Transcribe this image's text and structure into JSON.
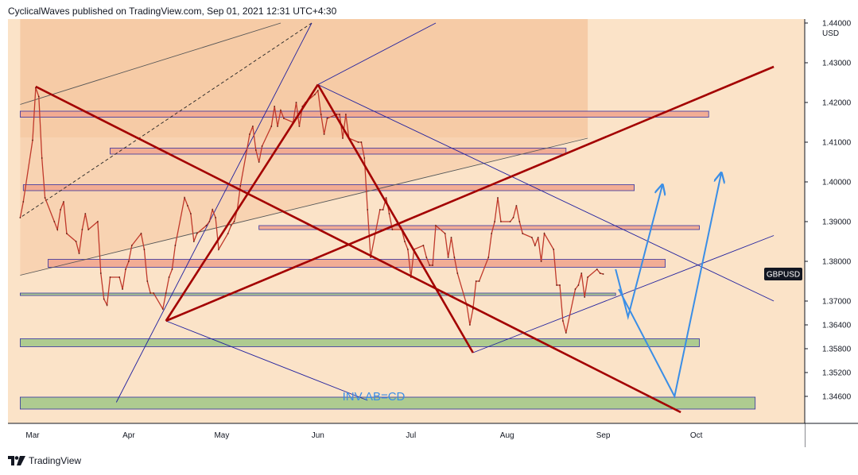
{
  "header": {
    "attribution": "CyclicalWaves published on TradingView.com, Sep 01, 2021 12:31 UTC+4:30"
  },
  "footer": {
    "brand": "TradingView",
    "logo_icon": "tradingview-logo-icon"
  },
  "colors": {
    "background": "#fbe3c8",
    "shaded_channel": "#f5c7a0",
    "resistance_zone": "#f2a890",
    "support_zone": "#a6c98a",
    "harmonic_line": "#a30000",
    "channel_line": "#1f1f9e",
    "projection_line": "#3a8ee6",
    "price_label_bg": "#131722"
  },
  "chart_data": {
    "type": "line",
    "symbol_label": "GBPUSD",
    "currency_label": "USD",
    "annotation": "INV AB=CD",
    "y_ticks": [
      "1.44000",
      "1.43000",
      "1.42000",
      "1.41000",
      "1.40000",
      "1.39000",
      "1.38000",
      "1.37000",
      "1.36400",
      "1.35800",
      "1.35200",
      "1.34600"
    ],
    "x_ticks": [
      "Mar",
      "Apr",
      "May",
      "Jun",
      "Jul",
      "Aug",
      "Sep",
      "Oct"
    ],
    "series": [
      {
        "values": [
          [
            "2021-02-25",
            1.391
          ],
          [
            "2021-02-26",
            1.395
          ],
          [
            "2021-03-01",
            1.4105
          ],
          [
            "2021-03-02",
            1.4237
          ],
          [
            "2021-03-03",
            1.4215
          ],
          [
            "2021-03-04",
            1.406
          ],
          [
            "2021-03-05",
            1.396
          ],
          [
            "2021-03-08",
            1.39
          ],
          [
            "2021-03-09",
            1.388
          ],
          [
            "2021-03-10",
            1.393
          ],
          [
            "2021-03-11",
            1.395
          ],
          [
            "2021-03-12",
            1.387
          ],
          [
            "2021-03-15",
            1.385
          ],
          [
            "2021-03-16",
            1.382
          ],
          [
            "2021-03-17",
            1.388
          ],
          [
            "2021-03-18",
            1.392
          ],
          [
            "2021-03-19",
            1.388
          ],
          [
            "2021-03-22",
            1.39
          ],
          [
            "2021-03-23",
            1.377
          ],
          [
            "2021-03-24",
            1.3705
          ],
          [
            "2021-03-25",
            1.369
          ],
          [
            "2021-03-26",
            1.376
          ],
          [
            "2021-03-29",
            1.376
          ],
          [
            "2021-03-30",
            1.373
          ],
          [
            "2021-03-31",
            1.378
          ],
          [
            "2021-04-01",
            1.38
          ],
          [
            "2021-04-02",
            1.384
          ],
          [
            "2021-04-05",
            1.387
          ],
          [
            "2021-04-06",
            1.383
          ],
          [
            "2021-04-07",
            1.375
          ],
          [
            "2021-04-08",
            1.372
          ],
          [
            "2021-04-09",
            1.372
          ],
          [
            "2021-04-12",
            1.368
          ],
          [
            "2021-04-13",
            1.372
          ],
          [
            "2021-04-14",
            1.376
          ],
          [
            "2021-04-15",
            1.378
          ],
          [
            "2021-04-16",
            1.384
          ],
          [
            "2021-04-19",
            1.396
          ],
          [
            "2021-04-20",
            1.394
          ],
          [
            "2021-04-21",
            1.392
          ],
          [
            "2021-04-22",
            1.385
          ],
          [
            "2021-04-23",
            1.387
          ],
          [
            "2021-04-26",
            1.389
          ],
          [
            "2021-04-27",
            1.39
          ],
          [
            "2021-04-28",
            1.393
          ],
          [
            "2021-04-29",
            1.391
          ],
          [
            "2021-04-30",
            1.383
          ],
          [
            "2021-05-03",
            1.387
          ],
          [
            "2021-05-04",
            1.389
          ],
          [
            "2021-05-05",
            1.39
          ],
          [
            "2021-05-06",
            1.393
          ],
          [
            "2021-05-07",
            1.399
          ],
          [
            "2021-05-10",
            1.412
          ],
          [
            "2021-05-11",
            1.414
          ],
          [
            "2021-05-12",
            1.408
          ],
          [
            "2021-05-13",
            1.405
          ],
          [
            "2021-05-14",
            1.409
          ],
          [
            "2021-05-17",
            1.414
          ],
          [
            "2021-05-18",
            1.419
          ],
          [
            "2021-05-19",
            1.414
          ],
          [
            "2021-05-20",
            1.418
          ],
          [
            "2021-05-21",
            1.416
          ],
          [
            "2021-05-24",
            1.415
          ],
          [
            "2021-05-25",
            1.42
          ],
          [
            "2021-05-26",
            1.414
          ],
          [
            "2021-05-27",
            1.419
          ],
          [
            "2021-05-28",
            1.42
          ],
          [
            "2021-05-31",
            1.422
          ],
          [
            "2021-06-01",
            1.423
          ],
          [
            "2021-06-02",
            1.417
          ],
          [
            "2021-06-03",
            1.412
          ],
          [
            "2021-06-04",
            1.416
          ],
          [
            "2021-06-07",
            1.417
          ],
          [
            "2021-06-08",
            1.417
          ],
          [
            "2021-06-09",
            1.411
          ],
          [
            "2021-06-10",
            1.417
          ],
          [
            "2021-06-11",
            1.411
          ],
          [
            "2021-06-14",
            1.41
          ],
          [
            "2021-06-15",
            1.41
          ],
          [
            "2021-06-16",
            1.406
          ],
          [
            "2021-06-17",
            1.393
          ],
          [
            "2021-06-18",
            1.381
          ],
          [
            "2021-06-21",
            1.393
          ],
          [
            "2021-06-22",
            1.393
          ],
          [
            "2021-06-23",
            1.396
          ],
          [
            "2021-06-24",
            1.392
          ],
          [
            "2021-06-25",
            1.388
          ],
          [
            "2021-06-28",
            1.388
          ],
          [
            "2021-06-29",
            1.385
          ],
          [
            "2021-06-30",
            1.383
          ],
          [
            "2021-07-01",
            1.376
          ],
          [
            "2021-07-02",
            1.383
          ],
          [
            "2021-07-05",
            1.384
          ],
          [
            "2021-07-06",
            1.381
          ],
          [
            "2021-07-07",
            1.379
          ],
          [
            "2021-07-08",
            1.379
          ],
          [
            "2021-07-09",
            1.389
          ],
          [
            "2021-07-12",
            1.387
          ],
          [
            "2021-07-13",
            1.381
          ],
          [
            "2021-07-14",
            1.386
          ],
          [
            "2021-07-15",
            1.381
          ],
          [
            "2021-07-16",
            1.377
          ],
          [
            "2021-07-19",
            1.369
          ],
          [
            "2021-07-20",
            1.364
          ],
          [
            "2021-07-21",
            1.368
          ],
          [
            "2021-07-22",
            1.375
          ],
          [
            "2021-07-23",
            1.375
          ],
          [
            "2021-07-26",
            1.381
          ],
          [
            "2021-07-27",
            1.387
          ],
          [
            "2021-07-28",
            1.39
          ],
          [
            "2021-07-29",
            1.396
          ],
          [
            "2021-07-30",
            1.39
          ],
          [
            "2021-08-02",
            1.39
          ],
          [
            "2021-08-03",
            1.391
          ],
          [
            "2021-08-04",
            1.394
          ],
          [
            "2021-08-05",
            1.39
          ],
          [
            "2021-08-06",
            1.387
          ],
          [
            "2021-08-09",
            1.386
          ],
          [
            "2021-08-10",
            1.384
          ],
          [
            "2021-08-11",
            1.386
          ],
          [
            "2021-08-12",
            1.38
          ],
          [
            "2021-08-13",
            1.387
          ],
          [
            "2021-08-16",
            1.383
          ],
          [
            "2021-08-17",
            1.374
          ],
          [
            "2021-08-18",
            1.374
          ],
          [
            "2021-08-19",
            1.365
          ],
          [
            "2021-08-20",
            1.362
          ],
          [
            "2021-08-23",
            1.373
          ],
          [
            "2021-08-24",
            1.374
          ],
          [
            "2021-08-25",
            1.377
          ],
          [
            "2021-08-26",
            1.371
          ],
          [
            "2021-08-27",
            1.376
          ],
          [
            "2021-08-30",
            1.378
          ],
          [
            "2021-08-31",
            1.377
          ],
          [
            "2021-09-01",
            1.3768
          ]
        ]
      }
    ],
    "horizontal_zones": [
      {
        "kind": "resistance",
        "low": 1.4163,
        "high": 1.4178,
        "start": "2021-02-25",
        "end": "2021-10-05"
      },
      {
        "kind": "resistance",
        "low": 1.407,
        "high": 1.4085,
        "start": "2021-03-26",
        "end": "2021-08-20"
      },
      {
        "kind": "resistance",
        "low": 1.3978,
        "high": 1.3993,
        "start": "2021-02-26",
        "end": "2021-09-11"
      },
      {
        "kind": "resistance",
        "low": 1.388,
        "high": 1.389,
        "start": "2021-05-13",
        "end": "2021-10-02"
      },
      {
        "kind": "resistance",
        "low": 1.3785,
        "high": 1.3805,
        "start": "2021-03-06",
        "end": "2021-09-21"
      },
      {
        "kind": "support",
        "low": 1.3714,
        "high": 1.372,
        "start": "2021-02-25",
        "end": "2021-09-05"
      },
      {
        "kind": "support",
        "low": 1.3585,
        "high": 1.3605,
        "start": "2021-02-25",
        "end": "2021-10-02"
      },
      {
        "kind": "support",
        "low": 1.3428,
        "high": 1.3458,
        "start": "2021-02-25",
        "end": "2021-10-20"
      }
    ],
    "shaded_channel": {
      "start": "2021-02-25",
      "end": "2021-08-27",
      "top": 1.44
    },
    "harmonic_lines": [
      [
        [
          "2021-03-02",
          1.424
        ],
        [
          "2021-09-26",
          1.342
        ]
      ],
      [
        [
          "2021-04-13",
          1.365
        ],
        [
          "2021-06-01",
          1.4245
        ]
      ],
      [
        [
          "2021-06-01",
          1.4245
        ],
        [
          "2021-07-21",
          1.357
        ]
      ],
      [
        [
          "2021-04-13",
          1.365
        ],
        [
          "2021-10-26",
          1.429
        ]
      ]
    ],
    "channel_lines": [
      [
        [
          "2021-02-25",
          1.4195
        ],
        [
          "2021-05-20",
          1.44
        ]
      ],
      [
        [
          "2021-02-25",
          1.3765
        ],
        [
          "2021-08-27",
          1.411
        ]
      ],
      [
        [
          "2021-05-30",
          1.44
        ],
        [
          "2021-02-25",
          1.391
        ]
      ],
      [
        [
          "2021-05-30",
          1.44
        ],
        [
          "2021-03-28",
          1.3445
        ]
      ],
      [
        [
          "2021-06-01",
          1.4245
        ],
        [
          "2021-07-09",
          1.44
        ]
      ],
      [
        [
          "2021-04-13",
          1.365
        ],
        [
          "2021-06-17",
          1.345
        ]
      ],
      [
        [
          "2021-06-01",
          1.4245
        ],
        [
          "2021-10-26",
          1.37
        ]
      ],
      [
        [
          "2021-07-21",
          1.357
        ],
        [
          "2021-10-26",
          1.3865
        ]
      ]
    ],
    "projection_lines": [
      [
        [
          "2021-09-05",
          1.378
        ],
        [
          "2021-09-09",
          1.366
        ],
        [
          "2021-09-20",
          1.399
        ]
      ],
      [
        [
          "2021-09-06",
          1.373
        ],
        [
          "2021-09-24",
          1.346
        ],
        [
          "2021-10-09",
          1.402
        ]
      ]
    ],
    "last_price": 1.3768
  }
}
